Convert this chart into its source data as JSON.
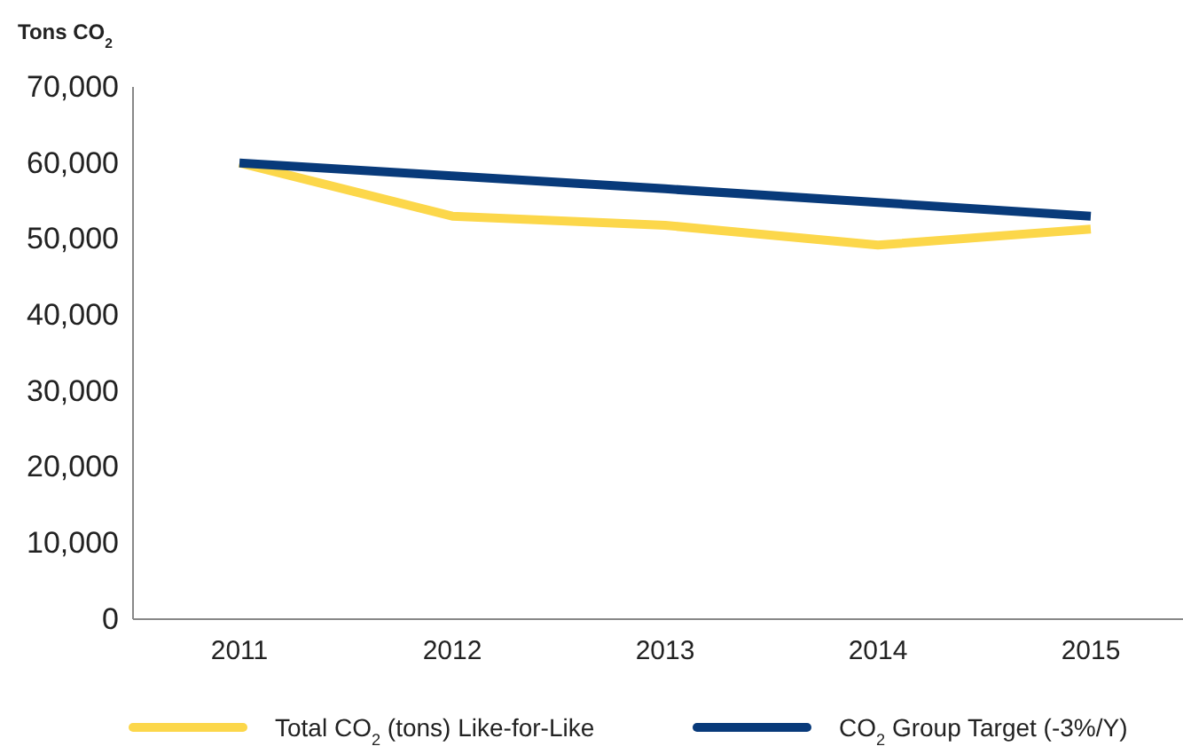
{
  "chart_data": {
    "type": "line",
    "ylabel": "Tons CO$_{2}$",
    "categories": [
      "2011",
      "2012",
      "2013",
      "2014",
      "2015"
    ],
    "series": [
      {
        "name": "Total CO$_{2}$ (tons) Like-for-Like",
        "color": "#fcd74a",
        "values": [
          60000,
          53000,
          51800,
          49200,
          51300
        ]
      },
      {
        "name": "CO$_{2}$ Group Target (-3%/Y)",
        "color": "#083a7a",
        "values": [
          60000,
          58300,
          56600,
          54800,
          53000
        ]
      }
    ],
    "ylim": [
      0,
      70000
    ],
    "yticks": [
      {
        "value": 0,
        "label": "0"
      },
      {
        "value": 10000,
        "label": "10,000"
      },
      {
        "value": 20000,
        "label": "20,000"
      },
      {
        "value": 30000,
        "label": "30,000"
      },
      {
        "value": 40000,
        "label": "40,000"
      },
      {
        "value": 50000,
        "label": "50,000"
      },
      {
        "value": 60000,
        "label": "60,000"
      },
      {
        "value": 70000,
        "label": "70,000"
      }
    ],
    "grid": false,
    "legend": "bottom",
    "marker": "none",
    "line_style": "solid"
  }
}
